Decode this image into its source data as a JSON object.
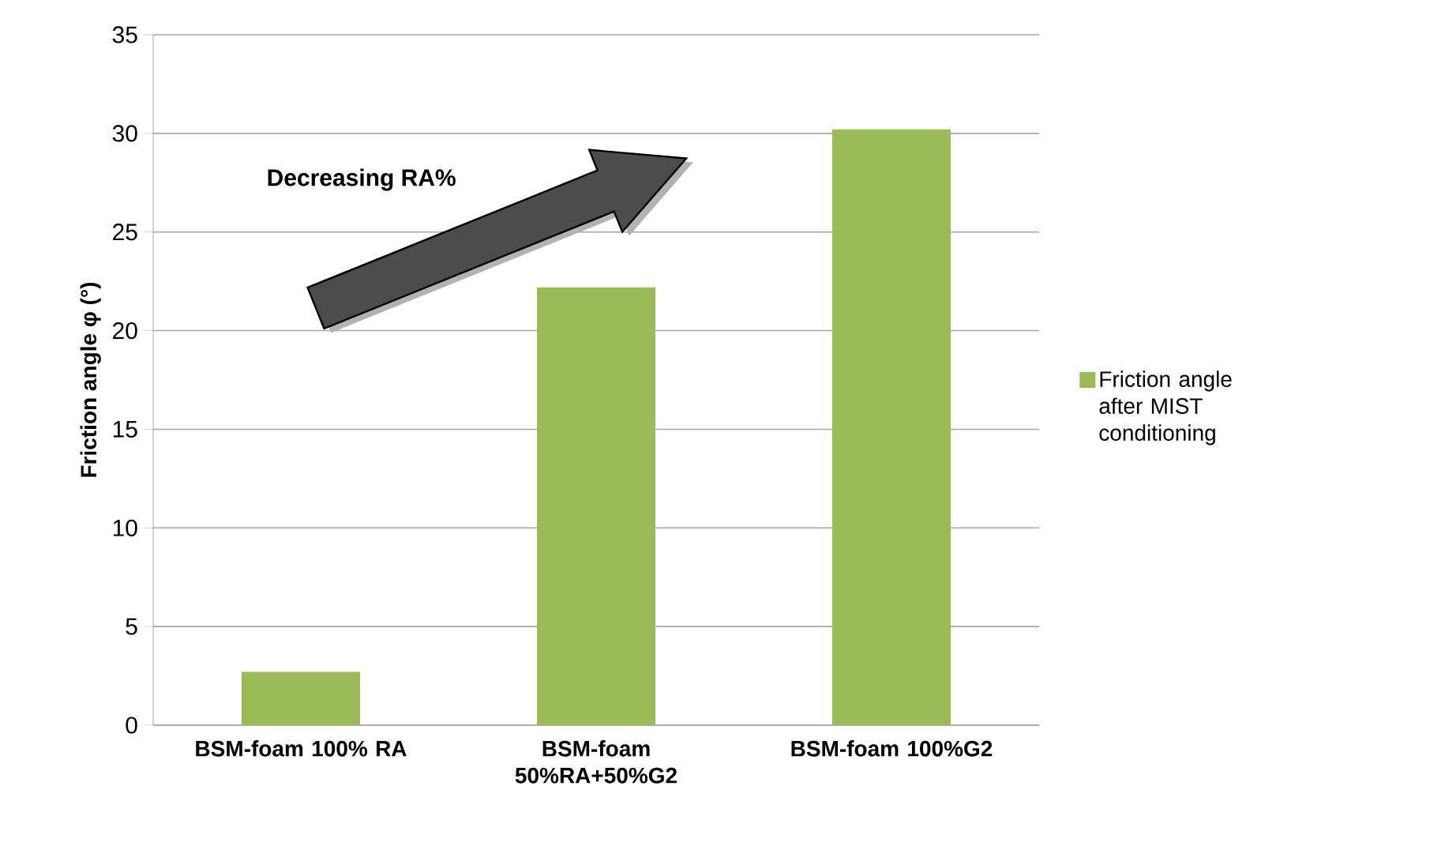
{
  "chart_data": {
    "type": "bar",
    "categories": [
      "BSM-foam 100% RA",
      "BSM-foam 50%RA+50%G2",
      "BSM-foam 100%G2"
    ],
    "series": [
      {
        "name": "Friction angle after MIST conditioning",
        "color": "#9bbb59",
        "values": [
          2.7,
          22.2,
          30.2
        ]
      }
    ],
    "ylabel": "Friction angle φ (°)",
    "annotations": [
      "Decreasing RA%"
    ],
    "ylim": [
      0,
      35
    ],
    "yticks": [
      0,
      5,
      10,
      15,
      20,
      25,
      30,
      35
    ],
    "grid": "y",
    "legend": "right"
  }
}
